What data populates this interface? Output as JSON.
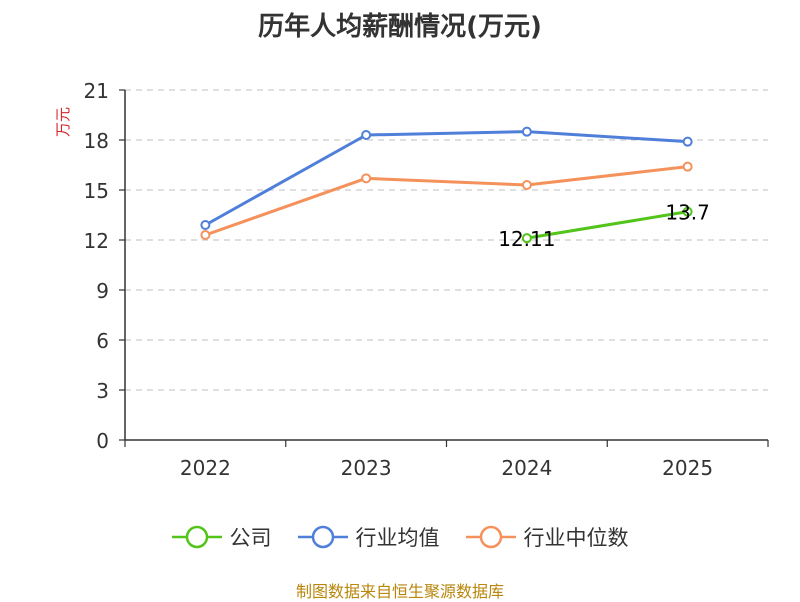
{
  "title": "历年人均薪酬情况(万元)",
  "source": "制图数据来自恒生聚源数据库",
  "colors": {
    "axis": "#333333",
    "grid": "#cccccc",
    "unit": "#d62728"
  },
  "chart_data": {
    "type": "line",
    "title": "历年人均薪酬情况(万元)",
    "ylabel": "万元",
    "xlabel": "",
    "categories": [
      "2022",
      "2023",
      "2024",
      "2025"
    ],
    "ylim": [
      0,
      21
    ],
    "yticks": [
      0,
      3,
      6,
      9,
      12,
      15,
      18,
      21
    ],
    "grid": true,
    "legend_position": "bottom",
    "series": [
      {
        "name": "公司",
        "color": "#52c41a",
        "values": [
          null,
          null,
          12.11,
          13.7
        ],
        "labels": [
          null,
          null,
          "12.11",
          "13.7"
        ]
      },
      {
        "name": "行业均值",
        "color": "#4f7fd9",
        "values": [
          12.9,
          18.3,
          18.5,
          17.9
        ]
      },
      {
        "name": "行业中位数",
        "color": "#f5915a",
        "values": [
          12.3,
          15.7,
          15.3,
          16.4
        ]
      }
    ]
  }
}
